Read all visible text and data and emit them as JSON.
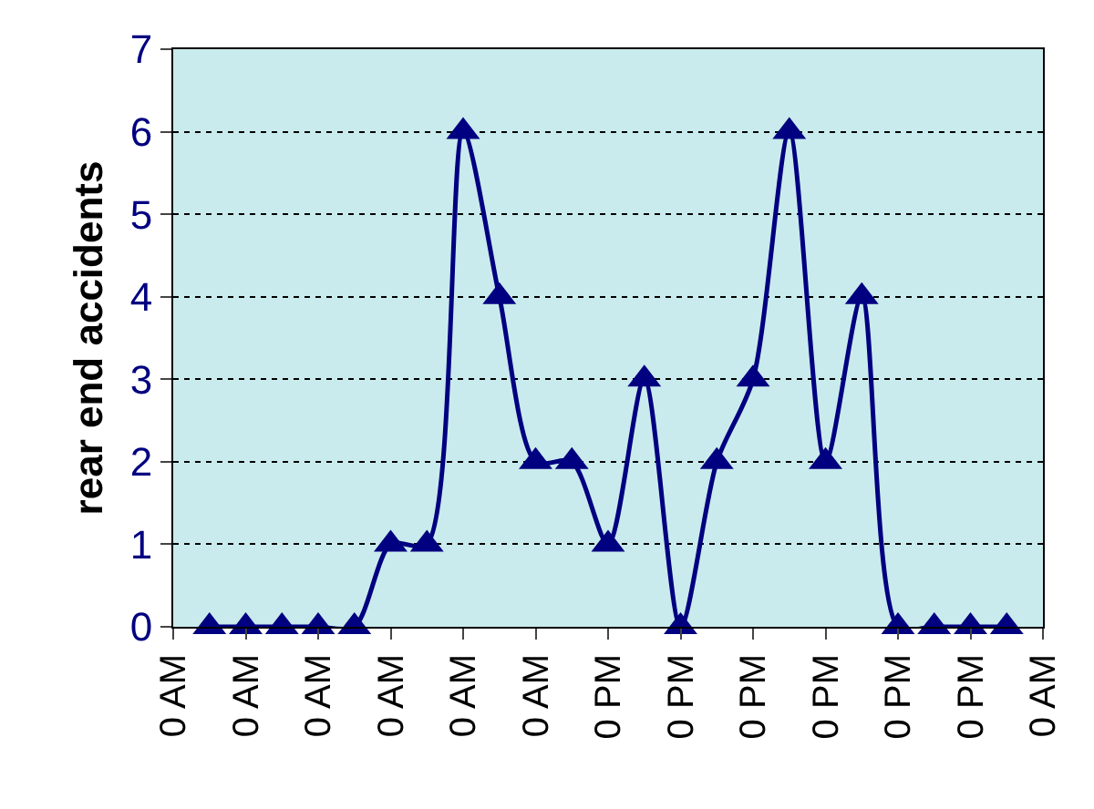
{
  "chart_data": {
    "type": "line",
    "ylabel": "rear end accidents",
    "categories": [
      "0 AM",
      null,
      "0 AM",
      null,
      "0 AM",
      null,
      "0 AM",
      null,
      "0 AM",
      null,
      "0 AM",
      null,
      "0 PM",
      null,
      "0 PM",
      null,
      "0 PM",
      null,
      "0 PM",
      null,
      "0 PM",
      null,
      "0 PM",
      null,
      "0 AM"
    ],
    "series": [
      {
        "color": "#000080",
        "values": [
          null,
          0,
          0,
          0,
          0,
          0,
          1,
          1,
          6,
          4,
          2,
          2,
          1,
          3,
          0,
          2,
          3,
          6,
          2,
          4,
          0,
          0,
          0,
          0,
          null
        ]
      }
    ],
    "ylim": [
      0,
      7
    ],
    "yticks": [
      0,
      1,
      2,
      3,
      4,
      5,
      6,
      7
    ],
    "grid": "y",
    "marker": "triangle",
    "line_style": "solid"
  }
}
